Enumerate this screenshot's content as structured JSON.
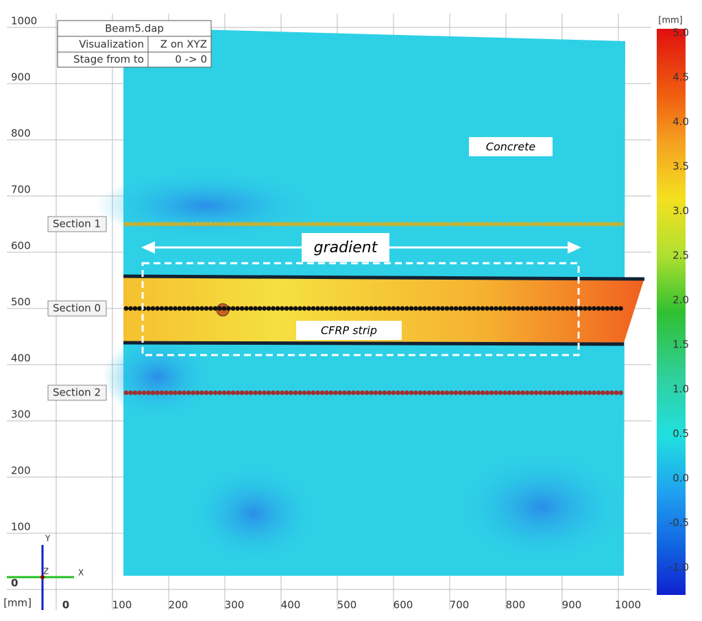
{
  "info_table": {
    "rows": [
      [
        "Beam5.dap"
      ],
      [
        "Visualization",
        "Z on XYZ"
      ],
      [
        "Stage from to",
        "0 -> 0"
      ]
    ]
  },
  "x_axis": {
    "unit": "[mm]",
    "ticks": [
      "0",
      "100",
      "200",
      "300",
      "400",
      "500",
      "600",
      "700",
      "800",
      "900",
      "1000"
    ]
  },
  "y_axis": {
    "ticks": [
      "0",
      "100",
      "200",
      "300",
      "400",
      "500",
      "600",
      "700",
      "800",
      "900",
      "1000"
    ]
  },
  "colorbar": {
    "unit": "[mm]",
    "ticks": [
      "5.0",
      "4.5",
      "4.0",
      "3.5",
      "3.0",
      "2.5",
      "2.0",
      "1.5",
      "1.0",
      "0.5",
      "0.0",
      "-0.5",
      "-1.0"
    ]
  },
  "sections": [
    {
      "label": "Section 1"
    },
    {
      "label": "Section 0"
    },
    {
      "label": "Section 2"
    }
  ],
  "annotations": {
    "concrete": "Concrete",
    "gradient": "gradient",
    "strip": "CFRP strip"
  },
  "axes_triad": {
    "x": "X",
    "y": "Y",
    "z": "Z"
  }
}
